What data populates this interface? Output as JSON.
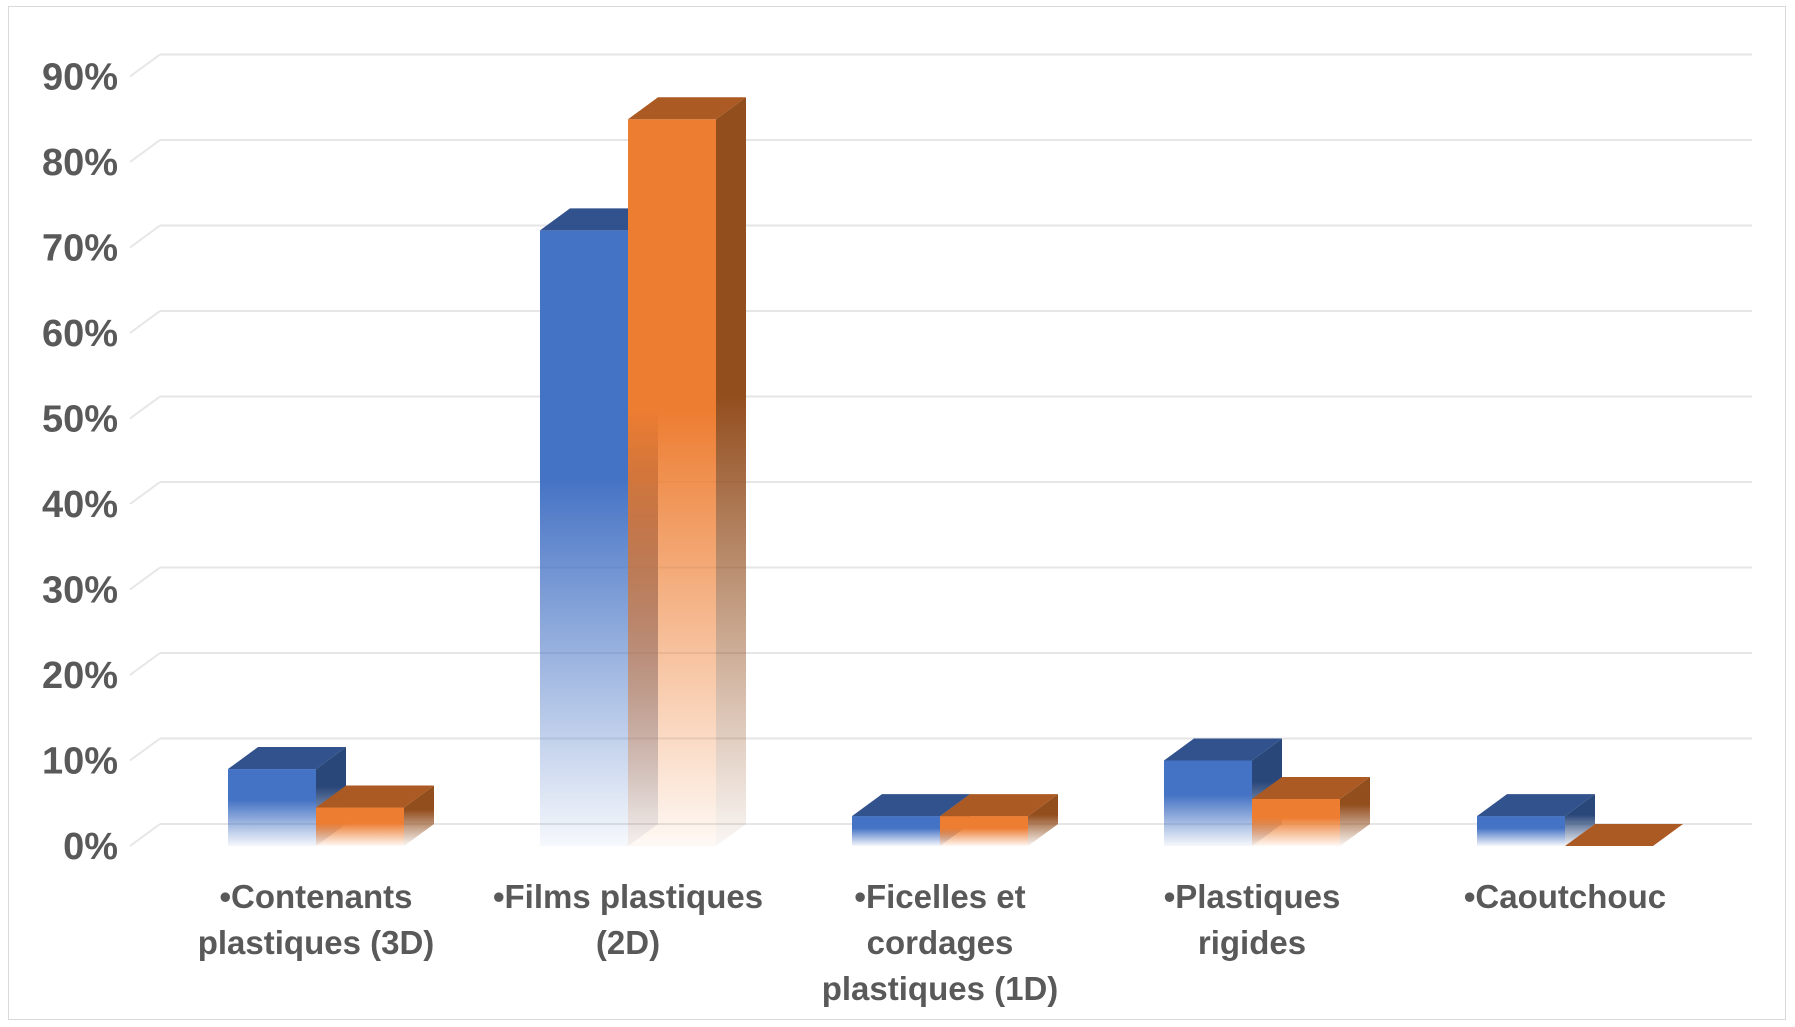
{
  "chart_data": {
    "type": "bar",
    "title": "",
    "xlabel": "",
    "ylabel": "",
    "ylim": [
      0,
      0.9
    ],
    "yticks": [
      0,
      0.1,
      0.2,
      0.3,
      0.4,
      0.5,
      0.6,
      0.7,
      0.8,
      0.9
    ],
    "ytick_labels": [
      "0%",
      "10%",
      "20%",
      "30%",
      "40%",
      "50%",
      "60%",
      "70%",
      "80%",
      "90%"
    ],
    "grid": true,
    "style": "3d-clustered",
    "categories": [
      [
        "•Contenants",
        "plastiques (3D)"
      ],
      [
        "•Films plastiques",
        "(2D)"
      ],
      [
        "•Ficelles et",
        "cordages",
        "plastiques (1D)"
      ],
      [
        "•Plastiques",
        "rigides"
      ],
      [
        "•Caoutchouc"
      ]
    ],
    "series": [
      {
        "values": [
          0.09,
          0.72,
          0.035,
          0.1,
          0.035
        ],
        "color": "#4472C4"
      },
      {
        "values": [
          0.045,
          0.85,
          0.035,
          0.055,
          0.0
        ],
        "color": "#ED7D31"
      }
    ]
  }
}
